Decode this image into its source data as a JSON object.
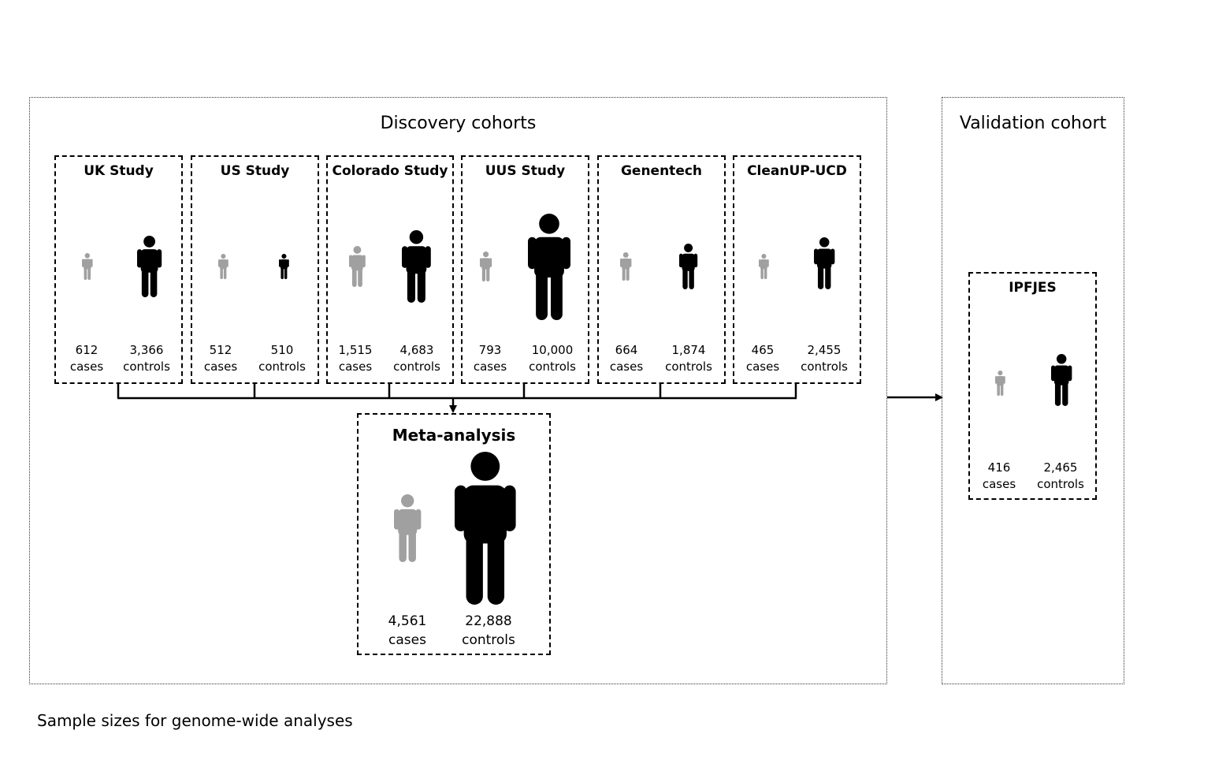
{
  "discovery": {
    "title": "Discovery cohorts",
    "studies": [
      {
        "name": "UK Study",
        "cases": "612",
        "controls": "3,366",
        "cases_label": "cases",
        "controls_label": "controls"
      },
      {
        "name": "US Study",
        "cases": "512",
        "controls": "510",
        "cases_label": "cases",
        "controls_label": "controls"
      },
      {
        "name": "Colorado Study",
        "cases": "1,515",
        "controls": "4,683",
        "cases_label": "cases",
        "controls_label": "controls"
      },
      {
        "name": "UUS Study",
        "cases": "793",
        "controls": "10,000",
        "cases_label": "cases",
        "controls_label": "controls"
      },
      {
        "name": "Genentech",
        "cases": "664",
        "controls": "1,874",
        "cases_label": "cases",
        "controls_label": "controls"
      },
      {
        "name": "CleanUP-UCD",
        "cases": "465",
        "controls": "2,455",
        "cases_label": "cases",
        "controls_label": "controls"
      }
    ],
    "meta": {
      "name": "Meta-analysis",
      "cases": "4,561",
      "controls": "22,888",
      "cases_label": "cases",
      "controls_label": "controls"
    }
  },
  "validation": {
    "title": "Validation cohort",
    "study": {
      "name": "IPFJES",
      "cases": "416",
      "controls": "2,465",
      "cases_label": "cases",
      "controls_label": "controls"
    }
  },
  "caption": "Sample sizes for genome-wide analyses",
  "colors": {
    "cases": "#a0a0a0",
    "controls": "#000000"
  }
}
